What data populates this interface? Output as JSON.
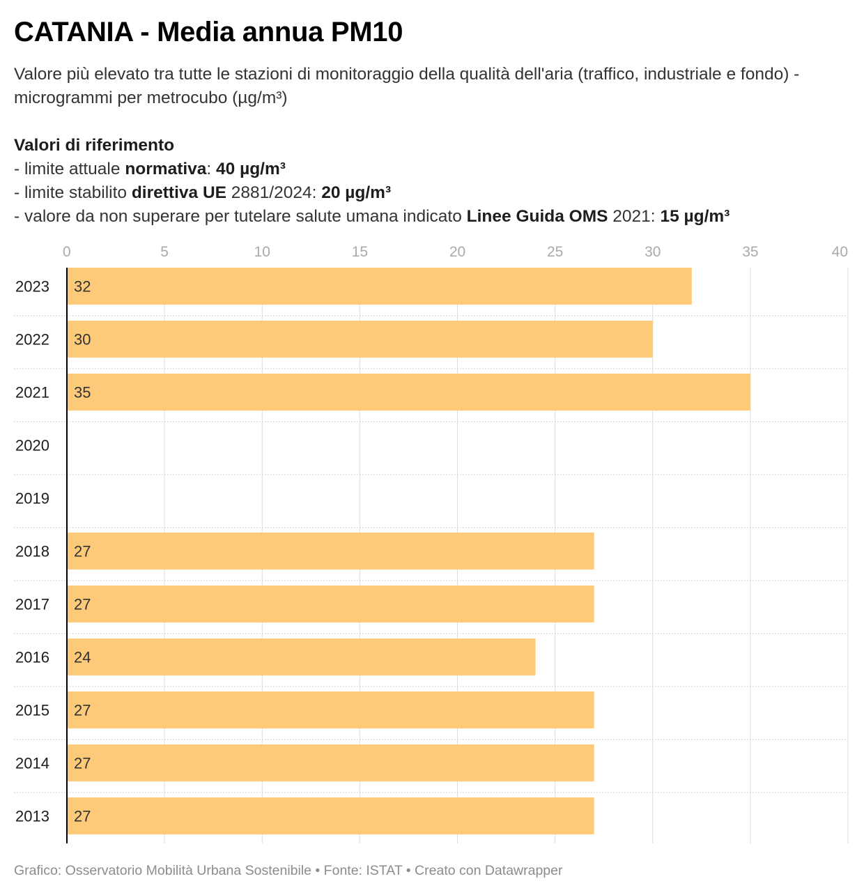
{
  "title": "CATANIA - Media annua PM10",
  "subtitle": "Valore più elevato tra tutte le stazioni di monitoraggio della qualità dell'aria (traffico, industriale e fondo) - microgrammi per metrocubo (µg/m³)",
  "references": {
    "heading": "Valori di riferimento",
    "line1": {
      "pre": "- limite attuale ",
      "b1": "normativa",
      "mid": ": ",
      "b2": "40 µg/m³"
    },
    "line2": {
      "pre": "- limite stabilito ",
      "b1": "direttiva UE",
      "mid": " 2881/2024: ",
      "b2": "20 µg/m³"
    },
    "line3": {
      "pre": "- valore da non superare per tutelare salute umana indicato ",
      "b1": "Linee Guida OMS",
      "mid": " 2021: ",
      "b2": "15 µg/m³"
    }
  },
  "footer": "Grafico: Osservatorio Mobilità Urbana Sostenibile • Fonte: ISTAT • Creato con Datawrapper",
  "colors": {
    "bar": "#fdca79",
    "grid": "#dddddd",
    "axis": "#000000",
    "tick": "#aaaaaa",
    "label": "#333333"
  },
  "chart_data": {
    "type": "bar",
    "orientation": "horizontal",
    "categories": [
      "2023",
      "2022",
      "2021",
      "2020",
      "2019",
      "2018",
      "2017",
      "2016",
      "2015",
      "2014",
      "2013"
    ],
    "values": [
      32,
      30,
      35,
      null,
      null,
      27,
      27,
      24,
      27,
      27,
      27
    ],
    "xlim": [
      0,
      40
    ],
    "xticks": [
      0,
      5,
      10,
      15,
      20,
      25,
      30,
      35,
      40
    ],
    "xaxis_position": "top",
    "grid": true
  }
}
